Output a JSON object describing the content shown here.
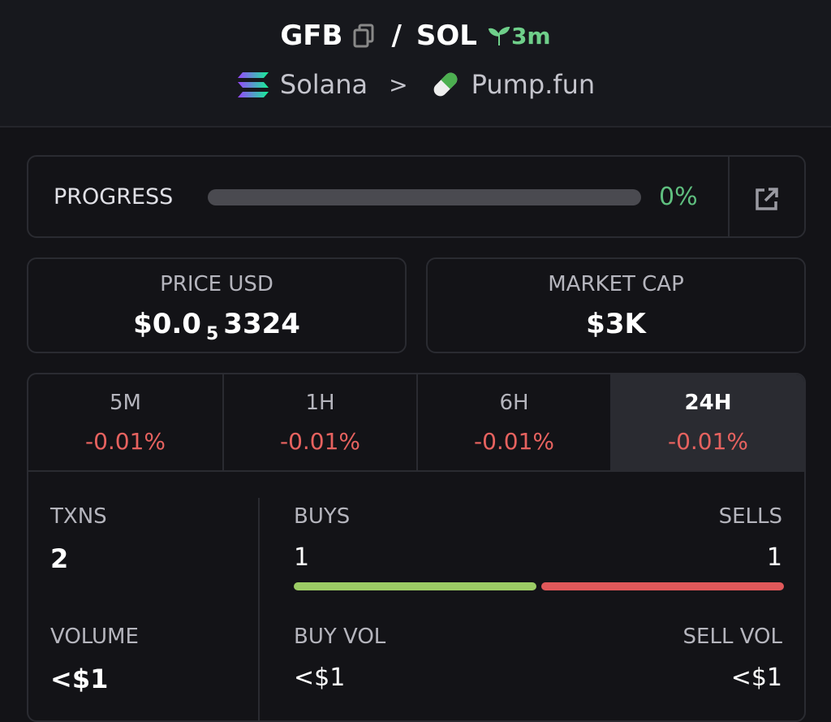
{
  "header": {
    "token": "GFB",
    "separator": "/",
    "quote": "SOL",
    "age": "3m",
    "chain": "Solana",
    "dex": "Pump.fun"
  },
  "progress": {
    "label": "PROGRESS",
    "value": "0%"
  },
  "price": {
    "label": "PRICE USD",
    "prefix": "$0.0",
    "zeros": "5",
    "digits": "3324"
  },
  "market_cap": {
    "label": "MARKET CAP",
    "value": "$3K"
  },
  "timeframes": {
    "active": 3,
    "items": [
      {
        "label": "5M",
        "change": "-0.01%"
      },
      {
        "label": "1H",
        "change": "-0.01%"
      },
      {
        "label": "6H",
        "change": "-0.01%"
      },
      {
        "label": "24H",
        "change": "-0.01%"
      }
    ]
  },
  "stats": {
    "txns": {
      "label": "TXNS",
      "value": "2"
    },
    "buys": {
      "label": "BUYS",
      "value": 1
    },
    "sells": {
      "label": "SELLS",
      "value": 1
    },
    "volume": {
      "label": "VOLUME",
      "value": "<$1"
    },
    "buy_vol": {
      "label": "BUY VOL",
      "value": "<$1"
    },
    "sell_vol": {
      "label": "SELL VOL",
      "value": "<$1"
    }
  }
}
